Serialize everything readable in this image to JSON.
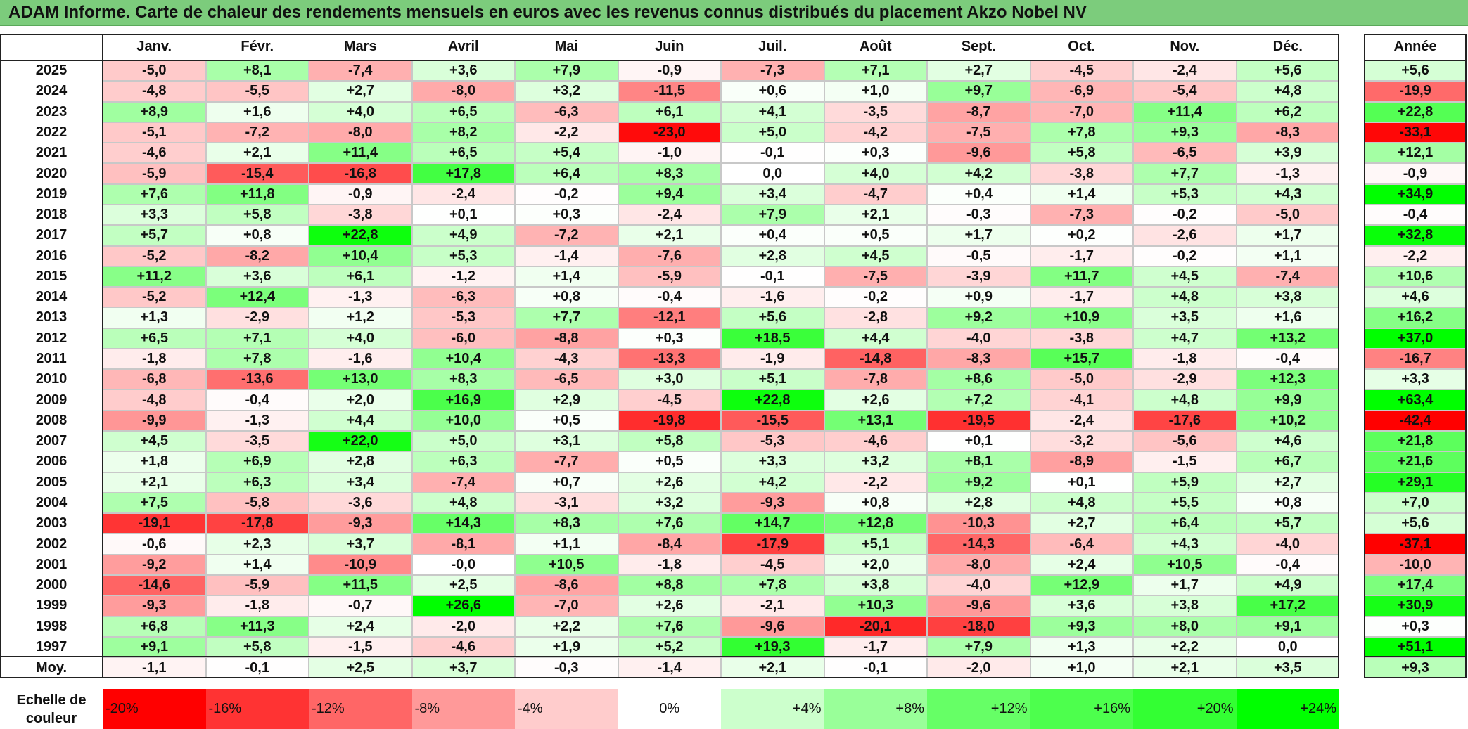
{
  "title": "ADAM Informe. Carte de chaleur des rendements mensuels en euros avec les revenus connus distribués du placement Akzo Nobel NV",
  "chart_data": {
    "type": "heatmap",
    "columns": [
      "Janv.",
      "Févr.",
      "Mars",
      "Avril",
      "Mai",
      "Juin",
      "Juil.",
      "Août",
      "Sept.",
      "Oct.",
      "Nov.",
      "Déc."
    ],
    "year_column": "Année",
    "average_label": "Moy.",
    "rows": [
      {
        "year": "2025",
        "values": [
          "-5,0",
          "+8,1",
          "-7,4",
          "+3,6",
          "+7,9",
          "-0,9",
          "-7,3",
          "+7,1",
          "+2,7",
          "-4,5",
          "-2,4",
          "+5,6"
        ],
        "annual": "+5,6"
      },
      {
        "year": "2024",
        "values": [
          "-4,8",
          "-5,5",
          "+2,7",
          "-8,0",
          "+3,2",
          "-11,5",
          "+0,6",
          "+1,0",
          "+9,7",
          "-6,9",
          "-5,4",
          "+4,8"
        ],
        "annual": "-19,9"
      },
      {
        "year": "2023",
        "values": [
          "+8,9",
          "+1,6",
          "+4,0",
          "+6,5",
          "-6,3",
          "+6,1",
          "+4,1",
          "-3,5",
          "-8,7",
          "-7,0",
          "+11,4",
          "+6,2"
        ],
        "annual": "+22,8"
      },
      {
        "year": "2022",
        "values": [
          "-5,1",
          "-7,2",
          "-8,0",
          "+8,2",
          "-2,2",
          "-23,0",
          "+5,0",
          "-4,2",
          "-7,5",
          "+7,8",
          "+9,3",
          "-8,3"
        ],
        "annual": "-33,1"
      },
      {
        "year": "2021",
        "values": [
          "-4,6",
          "+2,1",
          "+11,4",
          "+6,5",
          "+5,4",
          "-1,0",
          "-0,1",
          "+0,3",
          "-9,6",
          "+5,8",
          "-6,5",
          "+3,9"
        ],
        "annual": "+12,1"
      },
      {
        "year": "2020",
        "values": [
          "-5,9",
          "-15,4",
          "-16,8",
          "+17,8",
          "+6,4",
          "+8,3",
          "0,0",
          "+4,0",
          "+4,2",
          "-3,8",
          "+7,7",
          "-1,3"
        ],
        "annual": "-0,9"
      },
      {
        "year": "2019",
        "values": [
          "+7,6",
          "+11,8",
          "-0,9",
          "-2,4",
          "-0,2",
          "+9,4",
          "+3,4",
          "-4,7",
          "+0,4",
          "+1,4",
          "+5,3",
          "+4,3"
        ],
        "annual": "+34,9"
      },
      {
        "year": "2018",
        "values": [
          "+3,3",
          "+5,8",
          "-3,8",
          "+0,1",
          "+0,3",
          "-2,4",
          "+7,9",
          "+2,1",
          "-0,3",
          "-7,3",
          "-0,2",
          "-5,0"
        ],
        "annual": "-0,4"
      },
      {
        "year": "2017",
        "values": [
          "+5,7",
          "+0,8",
          "+22,8",
          "+4,9",
          "-7,2",
          "+2,1",
          "+0,4",
          "+0,5",
          "+1,7",
          "+0,2",
          "-2,6",
          "+1,7"
        ],
        "annual": "+32,8"
      },
      {
        "year": "2016",
        "values": [
          "-5,2",
          "-8,2",
          "+10,4",
          "+5,3",
          "-1,4",
          "-7,6",
          "+2,8",
          "+4,5",
          "-0,5",
          "-1,7",
          "-0,2",
          "+1,1"
        ],
        "annual": "-2,2"
      },
      {
        "year": "2015",
        "values": [
          "+11,2",
          "+3,6",
          "+6,1",
          "-1,2",
          "+1,4",
          "-5,9",
          "-0,1",
          "-7,5",
          "-3,9",
          "+11,7",
          "+4,5",
          "-7,4"
        ],
        "annual": "+10,6"
      },
      {
        "year": "2014",
        "values": [
          "-5,2",
          "+12,4",
          "-1,3",
          "-6,3",
          "+0,8",
          "-0,4",
          "-1,6",
          "-0,2",
          "+0,9",
          "-1,7",
          "+4,8",
          "+3,8"
        ],
        "annual": "+4,6"
      },
      {
        "year": "2013",
        "values": [
          "+1,3",
          "-2,9",
          "+1,2",
          "-5,3",
          "+7,7",
          "-12,1",
          "+5,6",
          "-2,8",
          "+9,2",
          "+10,9",
          "+3,5",
          "+1,6"
        ],
        "annual": "+16,2"
      },
      {
        "year": "2012",
        "values": [
          "+6,5",
          "+7,1",
          "+4,0",
          "-6,0",
          "-8,8",
          "+0,3",
          "+18,5",
          "+4,4",
          "-4,0",
          "-3,8",
          "+4,7",
          "+13,2"
        ],
        "annual": "+37,0"
      },
      {
        "year": "2011",
        "values": [
          "-1,8",
          "+7,8",
          "-1,6",
          "+10,4",
          "-4,3",
          "-13,3",
          "-1,9",
          "-14,8",
          "-8,3",
          "+15,7",
          "-1,8",
          "-0,4"
        ],
        "annual": "-16,7"
      },
      {
        "year": "2010",
        "values": [
          "-6,8",
          "-13,6",
          "+13,0",
          "+8,3",
          "-6,5",
          "+3,0",
          "+5,1",
          "-7,8",
          "+8,6",
          "-5,0",
          "-2,9",
          "+12,3"
        ],
        "annual": "+3,3"
      },
      {
        "year": "2009",
        "values": [
          "-4,8",
          "-0,4",
          "+2,0",
          "+16,9",
          "+2,9",
          "-4,5",
          "+22,8",
          "+2,6",
          "+7,2",
          "-4,1",
          "+4,8",
          "+9,9"
        ],
        "annual": "+63,4"
      },
      {
        "year": "2008",
        "values": [
          "-9,9",
          "-1,3",
          "+4,4",
          "+10,0",
          "+0,5",
          "-19,8",
          "-15,5",
          "+13,1",
          "-19,5",
          "-2,4",
          "-17,6",
          "+10,2"
        ],
        "annual": "-42,4"
      },
      {
        "year": "2007",
        "values": [
          "+4,5",
          "-3,5",
          "+22,0",
          "+5,0",
          "+3,1",
          "+5,8",
          "-5,3",
          "-4,6",
          "+0,1",
          "-3,2",
          "-5,6",
          "+4,6"
        ],
        "annual": "+21,8"
      },
      {
        "year": "2006",
        "values": [
          "+1,8",
          "+6,9",
          "+2,8",
          "+6,3",
          "-7,7",
          "+0,5",
          "+3,3",
          "+3,2",
          "+8,1",
          "-8,9",
          "-1,5",
          "+6,7"
        ],
        "annual": "+21,6"
      },
      {
        "year": "2005",
        "values": [
          "+2,1",
          "+6,3",
          "+3,4",
          "-7,4",
          "+0,7",
          "+2,6",
          "+4,2",
          "-2,2",
          "+9,2",
          "+0,1",
          "+5,9",
          "+2,7"
        ],
        "annual": "+29,1"
      },
      {
        "year": "2004",
        "values": [
          "+7,5",
          "-5,8",
          "-3,6",
          "+4,8",
          "-3,1",
          "+3,2",
          "-9,3",
          "+0,8",
          "+2,8",
          "+4,8",
          "+5,5",
          "+0,8"
        ],
        "annual": "+7,0"
      },
      {
        "year": "2003",
        "values": [
          "-19,1",
          "-17,8",
          "-9,3",
          "+14,3",
          "+8,3",
          "+7,6",
          "+14,7",
          "+12,8",
          "-10,3",
          "+2,7",
          "+6,4",
          "+5,7"
        ],
        "annual": "+5,6"
      },
      {
        "year": "2002",
        "values": [
          "-0,6",
          "+2,3",
          "+3,7",
          "-8,1",
          "+1,1",
          "-8,4",
          "-17,9",
          "+5,1",
          "-14,3",
          "-6,4",
          "+4,3",
          "-4,0"
        ],
        "annual": "-37,1"
      },
      {
        "year": "2001",
        "values": [
          "-9,2",
          "+1,4",
          "-10,9",
          "-0,0",
          "+10,5",
          "-1,8",
          "-4,5",
          "+2,0",
          "-8,0",
          "+2,4",
          "+10,5",
          "-0,4"
        ],
        "annual": "-10,0"
      },
      {
        "year": "2000",
        "values": [
          "-14,6",
          "-5,9",
          "+11,5",
          "+2,5",
          "-8,6",
          "+8,8",
          "+7,8",
          "+3,8",
          "-4,0",
          "+12,9",
          "+1,7",
          "+4,9"
        ],
        "annual": "+17,4"
      },
      {
        "year": "1999",
        "values": [
          "-9,3",
          "-1,8",
          "-0,7",
          "+26,6",
          "-7,0",
          "+2,6",
          "-2,1",
          "+10,3",
          "-9,6",
          "+3,6",
          "+3,8",
          "+17,2"
        ],
        "annual": "+30,9"
      },
      {
        "year": "1998",
        "values": [
          "+6,8",
          "+11,3",
          "+2,4",
          "-2,0",
          "+2,2",
          "+7,6",
          "-9,6",
          "-20,1",
          "-18,0",
          "+9,3",
          "+8,0",
          "+9,1"
        ],
        "annual": "+0,3"
      },
      {
        "year": "1997",
        "values": [
          "+9,1",
          "+5,8",
          "-1,5",
          "-4,6",
          "+1,9",
          "+5,2",
          "+19,3",
          "-1,7",
          "+7,9",
          "+1,3",
          "+2,2",
          "0,0"
        ],
        "annual": "+51,1"
      }
    ],
    "averages": [
      "-1,1",
      "-0,1",
      "+2,5",
      "+3,7",
      "-0,3",
      "-1,4",
      "+2,1",
      "-0,1",
      "-2,0",
      "+1,0",
      "+2,1",
      "+3,5"
    ],
    "average_annual": "+9,3",
    "scale_label": "Echelle de couleur",
    "scale": [
      {
        "label": "-20%",
        "color": "#ff0000"
      },
      {
        "label": "-16%",
        "color": "#ff3333"
      },
      {
        "label": "-12%",
        "color": "#ff6666"
      },
      {
        "label": "-8%",
        "color": "#ff9999"
      },
      {
        "label": "-4%",
        "color": "#ffcccc"
      },
      {
        "label": "0%",
        "color": "#ffffff"
      },
      {
        "label": "+4%",
        "color": "#ccffcc"
      },
      {
        "label": "+8%",
        "color": "#99ff99"
      },
      {
        "label": "+12%",
        "color": "#66ff66"
      },
      {
        "label": "+16%",
        "color": "#4dff4d"
      },
      {
        "label": "+20%",
        "color": "#33ff33"
      },
      {
        "label": "+24%",
        "color": "#00ff00"
      }
    ]
  }
}
